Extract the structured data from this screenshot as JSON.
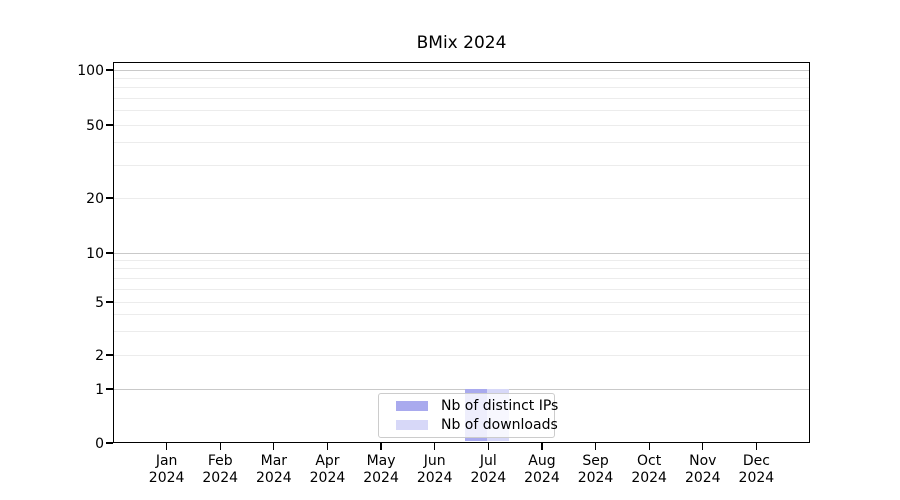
{
  "chart_data": {
    "type": "bar",
    "title": "BMix 2024",
    "categories": [
      "Jan 2024",
      "Feb 2024",
      "Mar 2024",
      "Apr 2024",
      "May 2024",
      "Jun 2024",
      "Jul 2024",
      "Aug 2024",
      "Sep 2024",
      "Oct 2024",
      "Nov 2024",
      "Dec 2024"
    ],
    "series": [
      {
        "name": "Nb of distinct IPs",
        "color": "#a9aaee",
        "values": [
          0,
          0,
          0,
          0,
          0,
          0,
          1,
          0,
          0,
          0,
          0,
          0
        ]
      },
      {
        "name": "Nb of downloads",
        "color": "#d7d8f8",
        "values": [
          0,
          0,
          0,
          0,
          0,
          0,
          1,
          0,
          0,
          0,
          0,
          0
        ]
      }
    ],
    "xlabel": "",
    "ylabel": "",
    "yscale": "log-like with linear segment below 1",
    "yticks": [
      0,
      1,
      2,
      5,
      10,
      20,
      50,
      100
    ],
    "ylim": [
      0,
      110
    ],
    "grid": {
      "orientation": "horizontal",
      "major_values": [
        1,
        10,
        100
      ],
      "minor_values": [
        2,
        3,
        4,
        5,
        6,
        7,
        8,
        9,
        20,
        30,
        40,
        50,
        60,
        70,
        80,
        90
      ]
    },
    "legend": {
      "position": "lower center",
      "entries": [
        "Nb of distinct IPs",
        "Nb of downloads"
      ]
    }
  },
  "colors": {
    "background": "#ffffff",
    "spine": "#000000",
    "text": "#000000",
    "major_grid": "#c9c9c9",
    "minor_grid": "#ececec",
    "legend_border": "#cccccc"
  }
}
